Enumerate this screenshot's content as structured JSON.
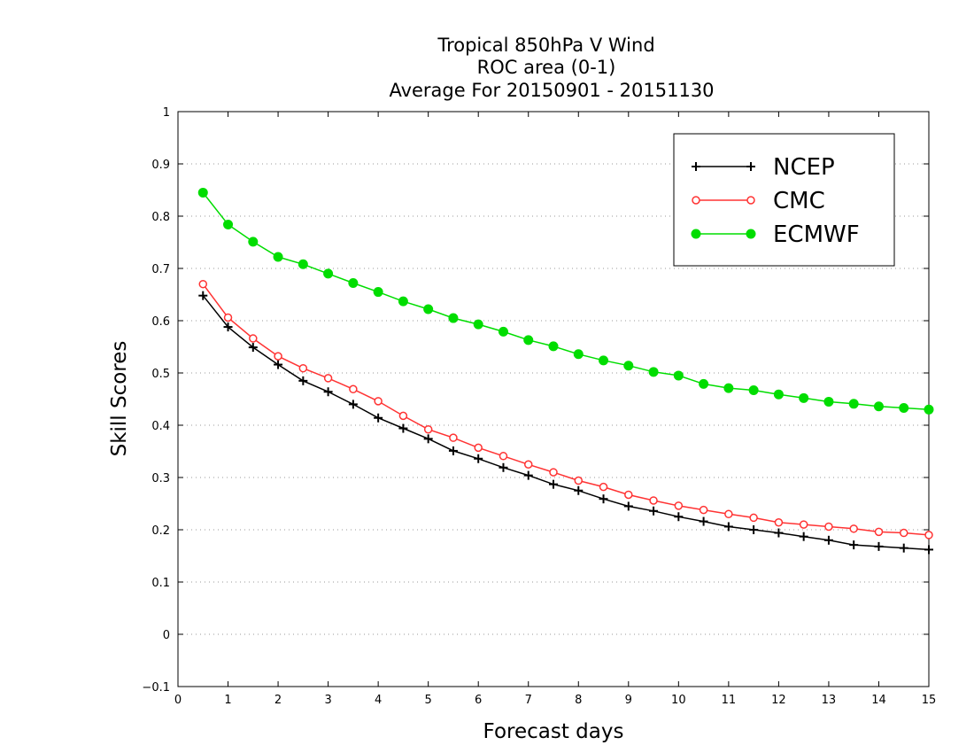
{
  "chart_data": {
    "type": "line",
    "title_lines": [
      "Tropical 850hPa V Wind",
      "ROC area (0-1)",
      "Average For 20150901 - 20151130"
    ],
    "xlabel": "Forecast days",
    "ylabel": "Skill Scores",
    "xlim": [
      0,
      15
    ],
    "ylim": [
      -0.1,
      1
    ],
    "xticks": [
      "0",
      "1",
      "2",
      "3",
      "4",
      "5",
      "6",
      "7",
      "8",
      "9",
      "10",
      "11",
      "12",
      "13",
      "14",
      "15"
    ],
    "yticks": [
      "−0.1",
      "0",
      "0.1",
      "0.2",
      "0.3",
      "0.4",
      "0.5",
      "0.6",
      "0.7",
      "0.8",
      "0.9",
      "1"
    ],
    "grid": "horizontal-dotted",
    "legend_position": "top-right",
    "x": [
      0.5,
      1,
      1.5,
      2,
      2.5,
      3,
      3.5,
      4,
      4.5,
      5,
      5.5,
      6,
      6.5,
      7,
      7.5,
      8,
      8.5,
      9,
      9.5,
      10,
      10.5,
      11,
      11.5,
      12,
      12.5,
      13,
      13.5,
      14,
      14.5,
      15
    ],
    "series": [
      {
        "name": "NCEP",
        "color": "#000000",
        "marker": "plus",
        "values": [
          0.648,
          0.588,
          0.549,
          0.516,
          0.485,
          0.464,
          0.44,
          0.414,
          0.394,
          0.374,
          0.351,
          0.336,
          0.319,
          0.304,
          0.287,
          0.275,
          0.259,
          0.245,
          0.236,
          0.225,
          0.216,
          0.206,
          0.2,
          0.194,
          0.187,
          0.18,
          0.171,
          0.168,
          0.165,
          0.162
        ]
      },
      {
        "name": "CMC",
        "color": "#ff3333",
        "marker": "open-circle",
        "values": [
          0.67,
          0.606,
          0.566,
          0.532,
          0.509,
          0.49,
          0.469,
          0.446,
          0.418,
          0.392,
          0.376,
          0.357,
          0.341,
          0.325,
          0.31,
          0.294,
          0.282,
          0.267,
          0.256,
          0.246,
          0.238,
          0.23,
          0.223,
          0.214,
          0.21,
          0.206,
          0.202,
          0.196,
          0.194,
          0.19
        ]
      },
      {
        "name": "ECMWF",
        "color": "#00dd00",
        "marker": "filled-circle",
        "values": [
          0.845,
          0.784,
          0.751,
          0.722,
          0.708,
          0.69,
          0.672,
          0.655,
          0.637,
          0.622,
          0.605,
          0.593,
          0.579,
          0.563,
          0.551,
          0.536,
          0.524,
          0.514,
          0.502,
          0.495,
          0.479,
          0.471,
          0.467,
          0.459,
          0.452,
          0.445,
          0.441,
          0.436,
          0.433,
          0.43
        ]
      }
    ]
  }
}
